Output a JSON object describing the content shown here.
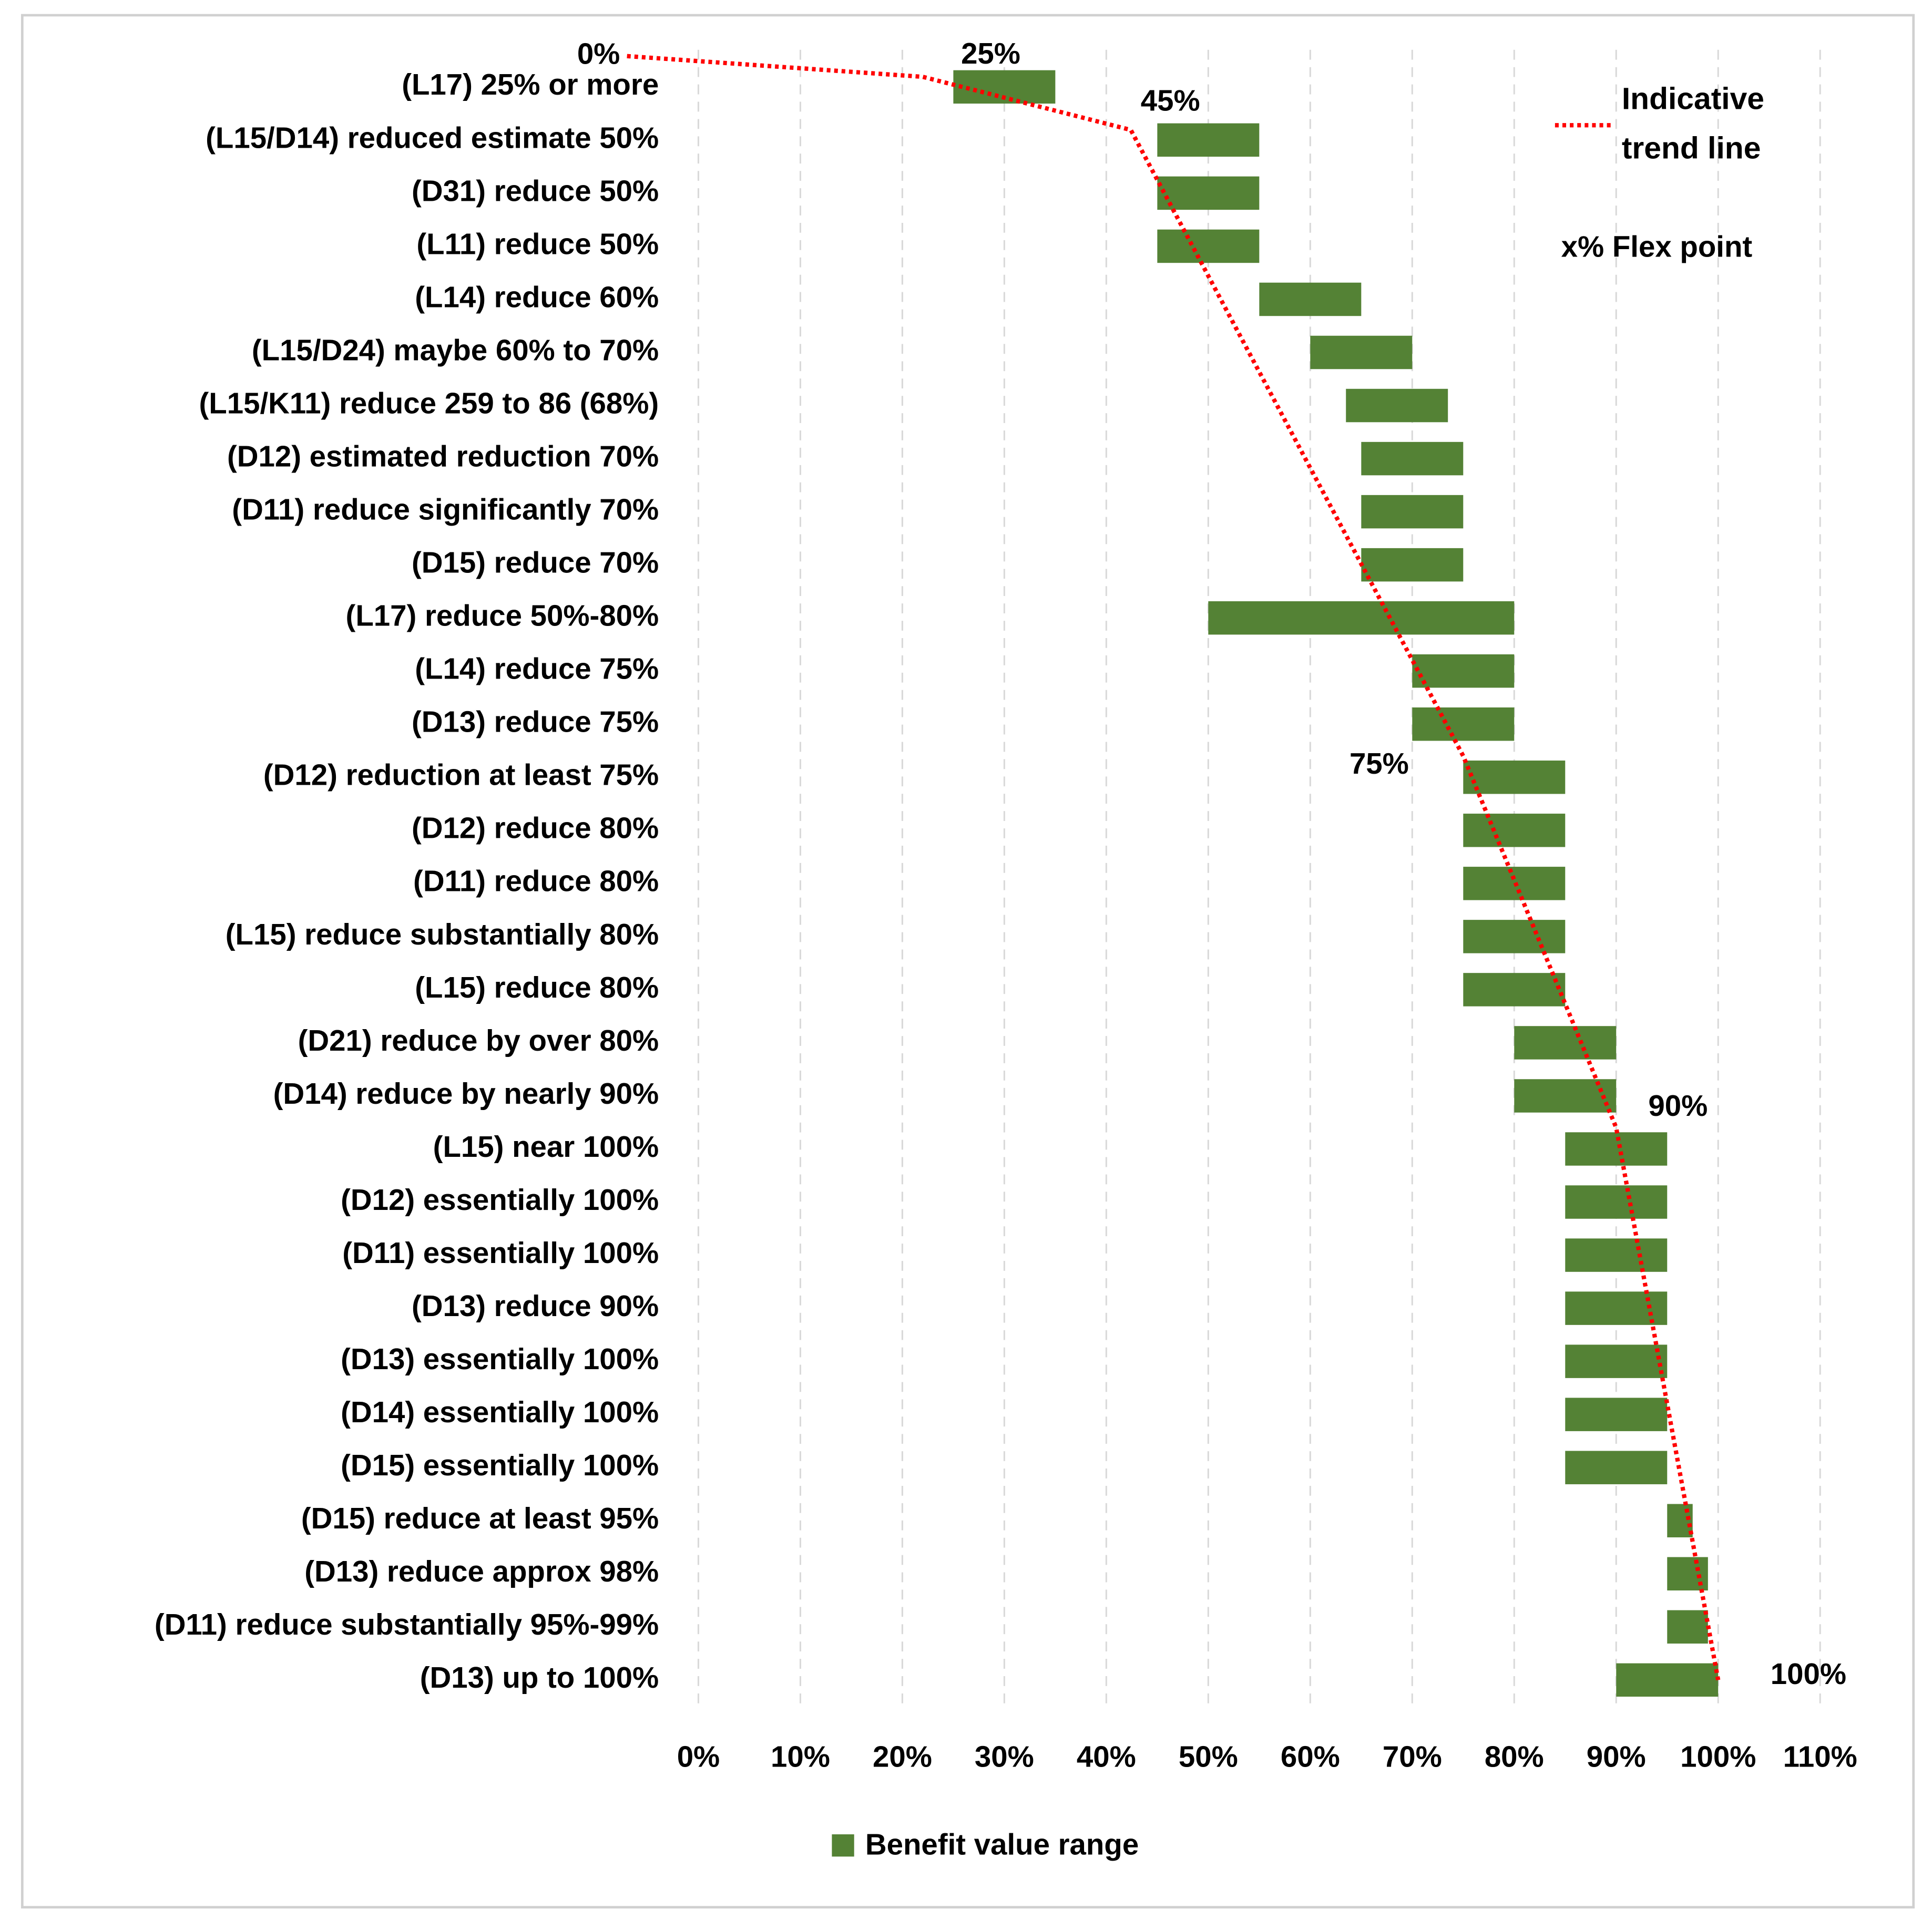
{
  "chart_data": {
    "type": "range_bar",
    "categories": [
      "(L17) 25% or more",
      "(L15/D14) reduced estimate 50%",
      "(D31) reduce 50%",
      "(L11) reduce 50%",
      "(L14) reduce 60%",
      "(L15/D24) maybe 60% to 70%",
      "(L15/K11) reduce 259 to 86 (68%)",
      "(D12) estimated reduction 70%",
      "(D11) reduce significantly 70%",
      "(D15) reduce 70%",
      "(L17) reduce 50%-80%",
      "(L14) reduce 75%",
      "(D13) reduce 75%",
      "(D12) reduction at least 75%",
      "(D12) reduce 80%",
      "(D11) reduce 80%",
      "(L15) reduce substantially 80%",
      "(L15) reduce 80%",
      "(D21) reduce by over 80%",
      "(D14) reduce by nearly 90%",
      "(L15) near 100%",
      "(D12) essentially 100%",
      "(D11) essentially 100%",
      "(D13) reduce 90%",
      "(D13) essentially 100%",
      "(D14) essentially 100%",
      "(D15) essentially 100%",
      "(D15) reduce at least 95%",
      "(D13) reduce approx 98%",
      "(D11) reduce substantially 95%-99%",
      "(D13) up to 100%"
    ],
    "series": [
      {
        "name": "Benefit value range",
        "color": "#548235",
        "ranges": [
          [
            25,
            35
          ],
          [
            45,
            55
          ],
          [
            45,
            55
          ],
          [
            45,
            55
          ],
          [
            55,
            65
          ],
          [
            60,
            70
          ],
          [
            63.5,
            73.5
          ],
          [
            65,
            75
          ],
          [
            65,
            75
          ],
          [
            65,
            75
          ],
          [
            50,
            80
          ],
          [
            70,
            80
          ],
          [
            70,
            80
          ],
          [
            75,
            85
          ],
          [
            75,
            85
          ],
          [
            75,
            85
          ],
          [
            75,
            85
          ],
          [
            75,
            85
          ],
          [
            80,
            90
          ],
          [
            80,
            90
          ],
          [
            85,
            95
          ],
          [
            85,
            95
          ],
          [
            85,
            95
          ],
          [
            85,
            95
          ],
          [
            85,
            95
          ],
          [
            85,
            95
          ],
          [
            85,
            95
          ],
          [
            95,
            97.5
          ],
          [
            95,
            99
          ],
          [
            95,
            99
          ],
          [
            90,
            100
          ]
        ]
      }
    ],
    "trend_line": {
      "name": "Indicative trend line",
      "color": "#ff0000",
      "x": [
        -7,
        22,
        42.4,
        75,
        90,
        100
      ],
      "y": [
        -0.58,
        -0.19,
        0.81,
        12.6,
        19.6,
        30
      ]
    },
    "annotations": [
      "0%",
      "25%",
      "45%",
      "75%",
      "90%",
      "100%"
    ],
    "flex_legend": "x%  Flex point",
    "xlim": [
      0,
      110
    ],
    "xticks": [
      {
        "value": 0,
        "label": "0%"
      },
      {
        "value": 10,
        "label": "10%"
      },
      {
        "value": 20,
        "label": "20%"
      },
      {
        "value": 30,
        "label": "30%"
      },
      {
        "value": 40,
        "label": "40%"
      },
      {
        "value": 50,
        "label": "50%"
      },
      {
        "value": 60,
        "label": "60%"
      },
      {
        "value": 70,
        "label": "70%"
      },
      {
        "value": 80,
        "label": "80%"
      },
      {
        "value": 90,
        "label": "90%"
      },
      {
        "value": 100,
        "label": "100%"
      },
      {
        "value": 110,
        "label": "110%"
      }
    ],
    "grid": true
  }
}
